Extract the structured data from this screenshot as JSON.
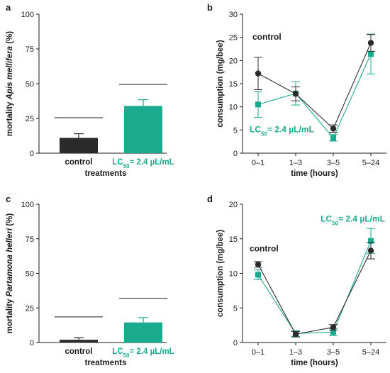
{
  "colors": {
    "control": "#2b2b2b",
    "treatment": "#1aab8f"
  },
  "chart_data": [
    {
      "panel": "a",
      "type": "bar",
      "xlabel": "treatments",
      "ylabel_pre": "mortality ",
      "ylabel_species": "Apis mellifera",
      "ylabel_post": " (%)",
      "ylim": [
        0,
        100
      ],
      "yticks": [
        0,
        25,
        50,
        75,
        100
      ],
      "categories": [
        "control",
        "LC50= 2.4 µL/mL"
      ],
      "category_labels": [
        {
          "pre": "control",
          "sub": "",
          "post": ""
        },
        {
          "pre": "LC",
          "sub": "50",
          "post": "= 2.4 µL/mL"
        }
      ],
      "values": [
        11,
        34
      ],
      "errors": [
        3,
        4.5
      ],
      "reference_lines": [
        25.5,
        49.5
      ]
    },
    {
      "panel": "b",
      "type": "line",
      "xlabel": "time (hours)",
      "ylabel": "consumption (mg/bee)",
      "ylim": [
        0,
        30
      ],
      "yticks": [
        0,
        5,
        10,
        15,
        20,
        25,
        30
      ],
      "x": [
        "0–1",
        "1–3",
        "3–5",
        "5–24"
      ],
      "annotation_control": "control",
      "annotation_treatment": {
        "pre": "LC",
        "sub": "50",
        "post": "= 2.4 µL/mL"
      },
      "series": [
        {
          "key": "control",
          "values": [
            17.2,
            12.8,
            5.3,
            23.8
          ],
          "errors": [
            3.5,
            1.5,
            0.8,
            1.8
          ]
        },
        {
          "key": "treatment",
          "values": [
            10.5,
            12.9,
            3.3,
            21.4
          ],
          "errors": [
            2.8,
            2.5,
            0.7,
            4.3
          ]
        }
      ]
    },
    {
      "panel": "c",
      "type": "bar",
      "xlabel": "treatments",
      "ylabel_pre": "mortality ",
      "ylabel_species": "Partamona helleri",
      "ylabel_post": " (%)",
      "ylim": [
        0,
        100
      ],
      "yticks": [
        0,
        25,
        50,
        75,
        100
      ],
      "categories": [
        "control",
        "LC50= 2.4 µL/mL"
      ],
      "category_labels": [
        {
          "pre": "control",
          "sub": "",
          "post": ""
        },
        {
          "pre": "LC",
          "sub": "50",
          "post": "= 2.4 µL/mL"
        }
      ],
      "values": [
        2,
        14.5
      ],
      "errors": [
        1.5,
        3.5
      ],
      "reference_lines": [
        18.5,
        32
      ]
    },
    {
      "panel": "d",
      "type": "line",
      "xlabel": "time (hours)",
      "ylabel": "consumption (mg/bee)",
      "ylim": [
        0,
        20
      ],
      "yticks": [
        0,
        5,
        10,
        15,
        20
      ],
      "x": [
        "0–1",
        "1–3",
        "3–5",
        "5–24"
      ],
      "annotation_control": "control",
      "annotation_treatment": {
        "pre": "LC",
        "sub": "50",
        "post": "= 2.4 µL/mL"
      },
      "series": [
        {
          "key": "control",
          "values": [
            11.3,
            1.2,
            2.2,
            13.3
          ],
          "errors": [
            0.4,
            0.4,
            0.4,
            1.2
          ]
        },
        {
          "key": "treatment",
          "values": [
            9.8,
            1.3,
            1.5,
            14.7
          ],
          "errors": [
            0.7,
            0.4,
            0.5,
            1.8
          ]
        }
      ]
    }
  ]
}
